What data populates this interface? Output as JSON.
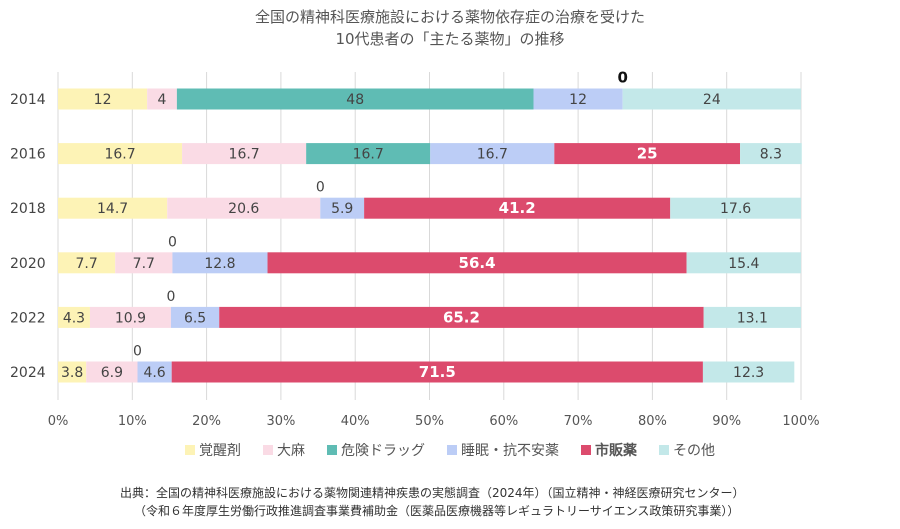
{
  "title_lines": [
    "全国の精神科医療施設における薬物依存症の治療を受けた",
    "10代患者の「主たる薬物」の推移"
  ],
  "chart_data": {
    "type": "bar",
    "orientation": "horizontal",
    "stacked": true,
    "xlim": [
      0,
      100
    ],
    "x_ticks": [
      "0%",
      "10%",
      "20%",
      "30%",
      "40%",
      "50%",
      "60%",
      "70%",
      "80%",
      "90%",
      "100%"
    ],
    "categories": [
      "2014",
      "2016",
      "2018",
      "2020",
      "2022",
      "2024"
    ],
    "series": [
      {
        "name": "覚醒剤",
        "color": "#fdf3b6",
        "values": [
          12,
          16.7,
          14.7,
          7.7,
          4.3,
          3.8
        ],
        "labels": [
          "12",
          "16.7",
          "14.7",
          "7.7",
          "4.3",
          "3.8"
        ]
      },
      {
        "name": "大麻",
        "color": "#fadbe5",
        "values": [
          4,
          16.7,
          20.6,
          7.7,
          10.9,
          6.9
        ],
        "labels": [
          "4",
          "16.7",
          "20.6",
          "7.7",
          "10.9",
          "6.9"
        ]
      },
      {
        "name": "危険ドラッグ",
        "color": "#5fbcb4",
        "values": [
          48,
          16.7,
          0,
          0,
          0,
          0
        ],
        "labels": [
          "48",
          "16.7",
          "0",
          "0",
          "0",
          "0"
        ]
      },
      {
        "name": "睡眠・抗不安薬",
        "color": "#bccdf6",
        "values": [
          12,
          16.7,
          5.9,
          12.8,
          6.5,
          4.6
        ],
        "labels": [
          "12",
          "16.7",
          "5.9",
          "12.8",
          "6.5",
          "4.6"
        ]
      },
      {
        "name": "市販薬",
        "color": "#dc4b6d",
        "values": [
          0,
          25,
          41.2,
          56.4,
          65.2,
          71.5
        ],
        "labels": [
          "0",
          "25",
          "41.2",
          "56.4",
          "65.2",
          "71.5"
        ],
        "emphasis": true
      },
      {
        "name": "その他",
        "color": "#c3e8e9",
        "values": [
          24,
          8.3,
          17.6,
          15.4,
          13.1,
          12.3
        ],
        "labels": [
          "24",
          "8.3",
          "17.6",
          "15.4",
          "13.1",
          "12.3"
        ]
      }
    ],
    "grid": true,
    "legend_position": "bottom"
  },
  "source_lines": [
    "出典：全国の精神科医療施設における薬物関連精神疾患の実態調査（2024年）（国立精神・神経医療研究センター）",
    "（令和６年度厚生労働行政推進調査事業費補助金（医薬品医療機器等レギュラトリーサイエンス政策研究事業））"
  ]
}
